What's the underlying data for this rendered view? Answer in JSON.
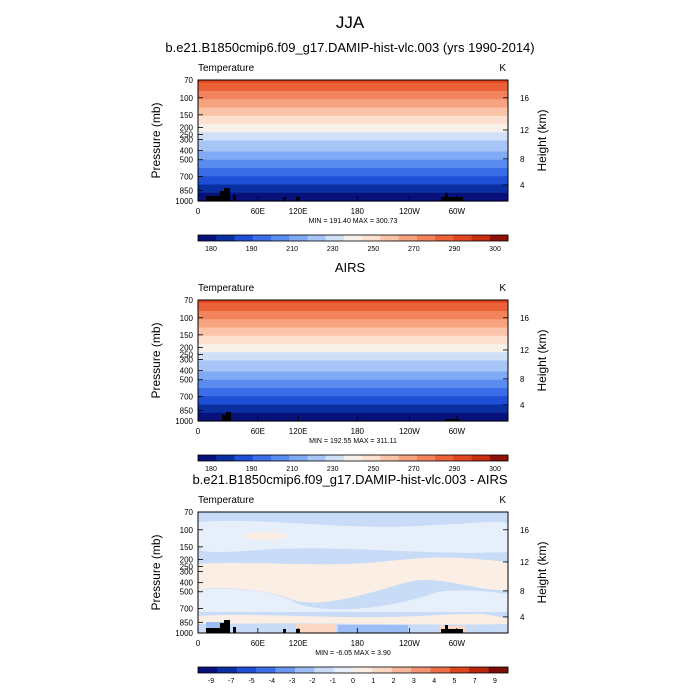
{
  "figure_title": "JJA",
  "colors": {
    "full_scale": [
      "#08107a",
      "#0a2fa0",
      "#1f4fd6",
      "#3a6ee8",
      "#5a8cf0",
      "#80aaf5",
      "#a7c6f7",
      "#cfe0f7",
      "#f7f1ea",
      "#fde0d0",
      "#fbc3a8",
      "#f7a380",
      "#f3835c",
      "#ec6238",
      "#e24520",
      "#c8300f",
      "#8f1208"
    ],
    "diff_scale": [
      "#08107a",
      "#0a2fa0",
      "#1f4fd6",
      "#3a6ee8",
      "#6a95f0",
      "#9bbcf5",
      "#c8dcf8",
      "#e7effa",
      "#fbeee4",
      "#fbd8c4",
      "#f8b79b",
      "#f39574",
      "#ec6d47",
      "#dd4520",
      "#b8260c",
      "#7a0d05"
    ],
    "terrain": "#000000"
  },
  "chart_data": [
    {
      "type": "heatmap",
      "title": "b.e21.B1850cmip6.f09_g17.DAMIP-hist-vlc.003 (yrs 1990-2014)",
      "left_label": "Temperature",
      "right_label": "K",
      "ylabel": "Pressure (mb)",
      "ylabel_right": "Height (km)",
      "x_ticks": [
        "0",
        "60E",
        "120E",
        "180",
        "120W",
        "60W"
      ],
      "y_ticks": [
        "70",
        "100",
        "150",
        "200",
        "250",
        "300",
        "400",
        "500",
        "700",
        "850",
        "1000"
      ],
      "y_ticks_right": [
        "16",
        "12",
        "8",
        "4"
      ],
      "stats": "MIN = 191.40   MAX = 300.73",
      "colorbar_labels": [
        "180",
        "190",
        "210",
        "230",
        "250",
        "270",
        "290",
        "300"
      ],
      "scale": "full",
      "min": 191.4,
      "max": 300.73
    },
    {
      "type": "heatmap",
      "title": "AIRS",
      "left_label": "Temperature",
      "right_label": "K",
      "ylabel": "Pressure (mb)",
      "ylabel_right": "Height (km)",
      "x_ticks": [
        "0",
        "60E",
        "120E",
        "180",
        "120W",
        "60W"
      ],
      "y_ticks": [
        "70",
        "100",
        "150",
        "200",
        "250",
        "300",
        "400",
        "500",
        "700",
        "850",
        "1000"
      ],
      "y_ticks_right": [
        "16",
        "12",
        "8",
        "4"
      ],
      "stats": "MIN = 192.55   MAX = 311.11",
      "colorbar_labels": [
        "180",
        "190",
        "210",
        "230",
        "250",
        "270",
        "290",
        "300"
      ],
      "scale": "full",
      "min": 192.55,
      "max": 311.11
    },
    {
      "type": "heatmap",
      "title": "b.e21.B1850cmip6.f09_g17.DAMIP-hist-vlc.003 - AIRS",
      "left_label": "Temperature",
      "right_label": "K",
      "ylabel": "Pressure (mb)",
      "ylabel_right": "Height (km)",
      "x_ticks": [
        "0",
        "60E",
        "120E",
        "180",
        "120W",
        "60W"
      ],
      "y_ticks": [
        "70",
        "100",
        "150",
        "200",
        "250",
        "300",
        "400",
        "500",
        "700",
        "850",
        "1000"
      ],
      "y_ticks_right": [
        "16",
        "12",
        "8",
        "4"
      ],
      "stats": "MIN = -6.05   MAX = 3.90",
      "colorbar_labels": [
        "-9",
        "-7",
        "-5",
        "-4",
        "-3",
        "-2",
        "-1",
        "0",
        "1",
        "2",
        "3",
        "4",
        "5",
        "7",
        "9"
      ],
      "scale": "diff",
      "min": -6.05,
      "max": 3.9
    }
  ]
}
